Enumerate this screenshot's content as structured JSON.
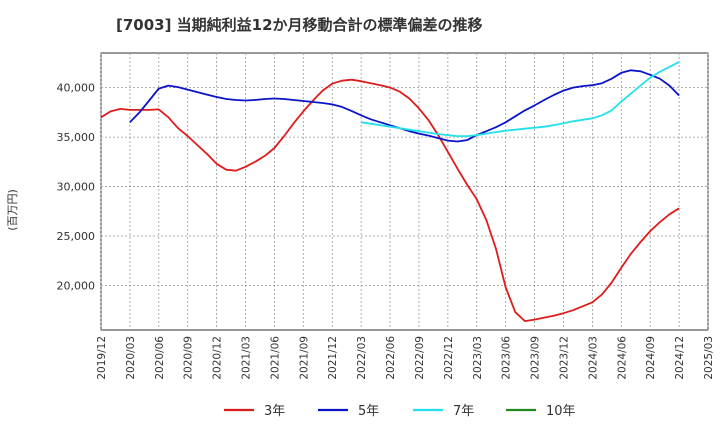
{
  "chart_data": {
    "type": "line",
    "title": "[7003]  当期純利益12か月移動合計の標準偏差の推移",
    "ylabel": "(百万円)",
    "xlabel": "",
    "ylim": [
      15500,
      43500
    ],
    "yticks": [
      20000,
      25000,
      30000,
      35000,
      40000
    ],
    "ytick_labels": [
      "20,000",
      "25,000",
      "30,000",
      "35,000",
      "40,000"
    ],
    "xticks": [
      "2019/12",
      "2020/03",
      "2020/06",
      "2020/09",
      "2020/12",
      "2021/03",
      "2021/06",
      "2021/09",
      "2021/12",
      "2022/03",
      "2022/06",
      "2022/09",
      "2022/12",
      "2023/03",
      "2023/06",
      "2023/09",
      "2023/12",
      "2024/03",
      "2024/06",
      "2024/09",
      "2024/12",
      "2025/03"
    ],
    "grid": true,
    "legend_position": "bottom",
    "series": [
      {
        "name": "3年",
        "color": "#dd1c1c",
        "points": [
          [
            "2019/12",
            37000
          ],
          [
            "2020/01",
            37600
          ],
          [
            "2020/02",
            37850
          ],
          [
            "2020/03",
            37750
          ],
          [
            "2020/04",
            37750
          ],
          [
            "2020/05",
            37750
          ],
          [
            "2020/06",
            37800
          ],
          [
            "2020/07",
            37000
          ],
          [
            "2020/08",
            35900
          ],
          [
            "2020/09",
            35100
          ],
          [
            "2020/10",
            34200
          ],
          [
            "2020/11",
            33300
          ],
          [
            "2020/12",
            32300
          ],
          [
            "2021/01",
            31700
          ],
          [
            "2021/02",
            31600
          ],
          [
            "2021/03",
            32000
          ],
          [
            "2021/04",
            32500
          ],
          [
            "2021/05",
            33100
          ],
          [
            "2021/06",
            33900
          ],
          [
            "2021/07",
            35100
          ],
          [
            "2021/08",
            36400
          ],
          [
            "2021/09",
            37600
          ],
          [
            "2021/10",
            38700
          ],
          [
            "2021/11",
            39700
          ],
          [
            "2021/12",
            40400
          ],
          [
            "2022/01",
            40700
          ],
          [
            "2022/02",
            40800
          ],
          [
            "2022/03",
            40650
          ],
          [
            "2022/04",
            40450
          ],
          [
            "2022/05",
            40250
          ],
          [
            "2022/06",
            40000
          ],
          [
            "2022/07",
            39600
          ],
          [
            "2022/08",
            38900
          ],
          [
            "2022/09",
            37900
          ],
          [
            "2022/10",
            36700
          ],
          [
            "2022/11",
            35200
          ],
          [
            "2022/12",
            33500
          ],
          [
            "2023/01",
            31800
          ],
          [
            "2023/02",
            30200
          ],
          [
            "2023/03",
            28700
          ],
          [
            "2023/04",
            26600
          ],
          [
            "2023/05",
            23700
          ],
          [
            "2023/06",
            19800
          ],
          [
            "2023/07",
            17300
          ],
          [
            "2023/08",
            16400
          ],
          [
            "2023/09",
            16550
          ],
          [
            "2023/10",
            16750
          ],
          [
            "2023/11",
            16950
          ],
          [
            "2023/12",
            17200
          ],
          [
            "2024/01",
            17500
          ],
          [
            "2024/02",
            17900
          ],
          [
            "2024/03",
            18300
          ],
          [
            "2024/04",
            19100
          ],
          [
            "2024/05",
            20300
          ],
          [
            "2024/06",
            21800
          ],
          [
            "2024/07",
            23200
          ],
          [
            "2024/08",
            24400
          ],
          [
            "2024/09",
            25500
          ],
          [
            "2024/10",
            26400
          ],
          [
            "2024/11",
            27200
          ],
          [
            "2024/12",
            27800
          ]
        ]
      },
      {
        "name": "5年",
        "color": "#0a14c8",
        "points": [
          [
            "2020/03",
            36500
          ],
          [
            "2020/04",
            37500
          ],
          [
            "2020/05",
            38700
          ],
          [
            "2020/06",
            39900
          ],
          [
            "2020/07",
            40200
          ],
          [
            "2020/08",
            40050
          ],
          [
            "2020/09",
            39800
          ],
          [
            "2020/10",
            39550
          ],
          [
            "2020/11",
            39300
          ],
          [
            "2020/12",
            39050
          ],
          [
            "2021/01",
            38850
          ],
          [
            "2021/02",
            38750
          ],
          [
            "2021/03",
            38700
          ],
          [
            "2021/04",
            38750
          ],
          [
            "2021/05",
            38850
          ],
          [
            "2021/06",
            38900
          ],
          [
            "2021/07",
            38850
          ],
          [
            "2021/08",
            38750
          ],
          [
            "2021/09",
            38650
          ],
          [
            "2021/10",
            38550
          ],
          [
            "2021/11",
            38450
          ],
          [
            "2021/12",
            38300
          ],
          [
            "2022/01",
            38050
          ],
          [
            "2022/02",
            37650
          ],
          [
            "2022/03",
            37200
          ],
          [
            "2022/04",
            36800
          ],
          [
            "2022/05",
            36500
          ],
          [
            "2022/06",
            36200
          ],
          [
            "2022/07",
            35900
          ],
          [
            "2022/08",
            35600
          ],
          [
            "2022/09",
            35350
          ],
          [
            "2022/10",
            35150
          ],
          [
            "2022/11",
            34900
          ],
          [
            "2022/12",
            34650
          ],
          [
            "2023/01",
            34550
          ],
          [
            "2023/02",
            34700
          ],
          [
            "2023/03",
            35200
          ],
          [
            "2023/04",
            35600
          ],
          [
            "2023/05",
            36000
          ],
          [
            "2023/06",
            36500
          ],
          [
            "2023/07",
            37100
          ],
          [
            "2023/08",
            37700
          ],
          [
            "2023/09",
            38200
          ],
          [
            "2023/10",
            38750
          ],
          [
            "2023/11",
            39250
          ],
          [
            "2023/12",
            39700
          ],
          [
            "2024/01",
            40000
          ],
          [
            "2024/02",
            40150
          ],
          [
            "2024/03",
            40250
          ],
          [
            "2024/04",
            40450
          ],
          [
            "2024/05",
            40900
          ],
          [
            "2024/06",
            41500
          ],
          [
            "2024/07",
            41750
          ],
          [
            "2024/08",
            41650
          ],
          [
            "2024/09",
            41300
          ],
          [
            "2024/10",
            40900
          ],
          [
            "2024/11",
            40200
          ],
          [
            "2024/12",
            39200
          ]
        ]
      },
      {
        "name": "7年",
        "color": "#22e0ec",
        "points": [
          [
            "2022/03",
            36500
          ],
          [
            "2022/04",
            36350
          ],
          [
            "2022/05",
            36200
          ],
          [
            "2022/06",
            36050
          ],
          [
            "2022/07",
            35900
          ],
          [
            "2022/08",
            35750
          ],
          [
            "2022/09",
            35600
          ],
          [
            "2022/10",
            35450
          ],
          [
            "2022/11",
            35300
          ],
          [
            "2022/12",
            35200
          ],
          [
            "2023/01",
            35100
          ],
          [
            "2023/02",
            35100
          ],
          [
            "2023/03",
            35200
          ],
          [
            "2023/04",
            35350
          ],
          [
            "2023/05",
            35500
          ],
          [
            "2023/06",
            35650
          ],
          [
            "2023/07",
            35750
          ],
          [
            "2023/08",
            35850
          ],
          [
            "2023/09",
            35950
          ],
          [
            "2023/10",
            36050
          ],
          [
            "2023/11",
            36200
          ],
          [
            "2023/12",
            36400
          ],
          [
            "2024/01",
            36600
          ],
          [
            "2024/02",
            36750
          ],
          [
            "2024/03",
            36900
          ],
          [
            "2024/04",
            37200
          ],
          [
            "2024/05",
            37700
          ],
          [
            "2024/06",
            38600
          ],
          [
            "2024/07",
            39400
          ],
          [
            "2024/08",
            40200
          ],
          [
            "2024/09",
            41000
          ],
          [
            "2024/10",
            41600
          ],
          [
            "2024/11",
            42100
          ],
          [
            "2024/12",
            42600
          ]
        ]
      },
      {
        "name": "10年",
        "color": "#208a20",
        "points": []
      }
    ]
  }
}
